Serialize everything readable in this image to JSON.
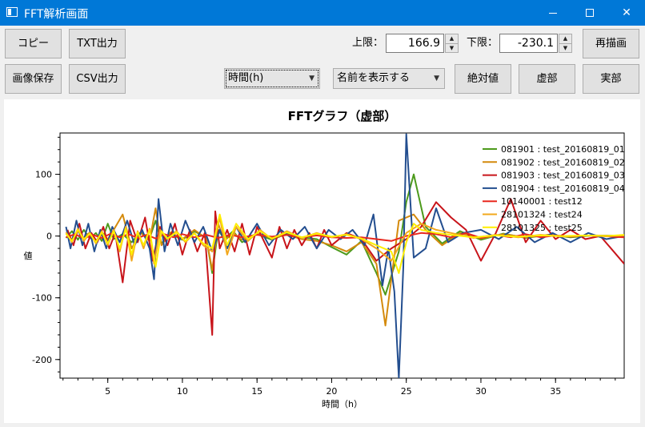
{
  "window": {
    "title": "FFT解析画面",
    "minimize_icon": "minimize-icon",
    "maximize_icon": "maximize-icon",
    "close_icon": "close-icon",
    "close_label": "✕"
  },
  "toolbar": {
    "copy": "コピー",
    "txt_out": "TXT出力",
    "save_image": "画像保存",
    "csv_out": "CSV出力",
    "upper_label": "上限：",
    "upper_value": "166.9",
    "lower_label": "下限：",
    "lower_value": "-230.1",
    "redraw": "再描画",
    "time_select": "時間(h)",
    "name_select": "名前を表示する",
    "absolute": "絶対値",
    "imaginary": "虚部",
    "real": "実部"
  },
  "chart_data": {
    "type": "line",
    "title": "FFTグラフ（虚部）",
    "xlabel": "時間（h）",
    "ylabel": "値",
    "xlim": [
      1.8,
      39.6
    ],
    "ylim": [
      -230.1,
      166.9
    ],
    "xticks": [
      5,
      10,
      15,
      20,
      25,
      30,
      35
    ],
    "yticks": [
      100,
      0,
      -100,
      -200
    ],
    "grid": false,
    "legend_position": "top-right",
    "series": [
      {
        "name": "081901 : test_20160819_01",
        "color": "#4d9a1c",
        "x": [
          2.2,
          2.6,
          3.0,
          3.4,
          3.8,
          4.2,
          4.6,
          5.0,
          5.4,
          6.0,
          6.6,
          7.2,
          7.8,
          8.2,
          8.6,
          9.2,
          10.0,
          10.8,
          11.6,
          12.0,
          12.4,
          12.8,
          13.4,
          14.0,
          15.0,
          16.0,
          17.0,
          18.0,
          19.0,
          20.0,
          21.0,
          22.0,
          23.0,
          23.6,
          24.5,
          25.0,
          25.5,
          26.3,
          27.4,
          28.6,
          30.0,
          31.5,
          33.0,
          34.5,
          36.0,
          37.5,
          39.6
        ],
        "y": [
          -3,
          8,
          -6,
          10,
          -4,
          5,
          -8,
          20,
          -5,
          3,
          -10,
          6,
          -4,
          25,
          -12,
          4,
          -6,
          8,
          -3,
          -60,
          10,
          -5,
          8,
          -10,
          3,
          -6,
          4,
          -2,
          -5,
          -18,
          -30,
          -8,
          -60,
          -95,
          -25,
          55,
          100,
          15,
          -12,
          8,
          -6,
          4,
          -3,
          2,
          -2,
          1,
          0
        ]
      },
      {
        "name": "081902 : test_20160819_02",
        "color": "#d48a0c",
        "x": [
          2.2,
          2.6,
          3.0,
          3.4,
          3.8,
          4.2,
          4.6,
          5.0,
          5.4,
          6.0,
          6.6,
          7.2,
          7.8,
          8.2,
          8.6,
          9.2,
          10.0,
          10.8,
          11.6,
          12.0,
          12.4,
          12.8,
          13.4,
          14.0,
          15.0,
          16.0,
          17.0,
          18.0,
          19.0,
          20.0,
          21.0,
          22.0,
          23.0,
          23.6,
          24.5,
          25.0,
          25.5,
          26.3,
          27.4,
          28.6,
          30.0,
          31.5,
          33.0,
          34.5,
          36.0,
          37.5,
          39.6
        ],
        "y": [
          4,
          -6,
          8,
          -3,
          6,
          -8,
          3,
          -5,
          10,
          35,
          -20,
          5,
          -8,
          45,
          -15,
          6,
          -5,
          10,
          -4,
          -55,
          20,
          -8,
          5,
          -6,
          4,
          -3,
          2,
          -5,
          -8,
          -15,
          -25,
          -10,
          -45,
          -145,
          25,
          30,
          35,
          10,
          -15,
          5,
          -4,
          3,
          -2,
          2,
          -1,
          1,
          0
        ]
      },
      {
        "name": "081903 : test_20160819_03",
        "color": "#c8141a",
        "x": [
          2.3,
          2.7,
          3.1,
          3.5,
          3.9,
          4.3,
          4.7,
          5.1,
          5.5,
          6.0,
          6.5,
          7.0,
          7.5,
          8.0,
          8.5,
          9.0,
          9.5,
          10.0,
          10.5,
          11.0,
          11.5,
          12.0,
          12.2,
          12.5,
          13.0,
          13.5,
          14.0,
          14.5,
          15.0,
          15.5,
          16.0,
          16.5,
          17.0,
          17.5,
          18.0,
          18.5,
          19.0,
          19.5,
          20.0,
          21.0,
          22.0,
          23.0,
          24.0,
          25.0,
          26.0,
          27.0,
          28.0,
          29.0,
          30.0,
          31.0,
          32.0,
          33.0,
          34.0,
          35.0,
          36.0,
          37.0,
          38.0,
          39.6
        ],
        "y": [
          10,
          -15,
          20,
          -20,
          5,
          -10,
          15,
          -20,
          5,
          -75,
          25,
          -10,
          30,
          -40,
          15,
          -15,
          20,
          -30,
          10,
          -25,
          5,
          -160,
          40,
          -20,
          10,
          -25,
          20,
          -30,
          15,
          -10,
          -35,
          15,
          -20,
          10,
          -15,
          5,
          -20,
          10,
          -15,
          5,
          -5,
          -40,
          -20,
          -5,
          15,
          55,
          30,
          10,
          -40,
          5,
          60,
          -10,
          25,
          -5,
          10,
          -5,
          0,
          -45
        ]
      },
      {
        "name": "081904 : test_20160819_04",
        "color": "#234e8f",
        "x": [
          2.2,
          2.5,
          2.9,
          3.3,
          3.7,
          4.1,
          4.5,
          4.9,
          5.3,
          5.8,
          6.3,
          6.8,
          7.3,
          7.8,
          8.1,
          8.4,
          8.8,
          9.2,
          9.7,
          10.2,
          10.8,
          11.4,
          12.0,
          12.5,
          13.0,
          13.6,
          14.2,
          15.0,
          15.8,
          16.6,
          17.4,
          18.2,
          19.0,
          19.8,
          20.6,
          21.4,
          22.2,
          22.8,
          23.4,
          23.8,
          24.2,
          24.5,
          24.8,
          25.0,
          25.5,
          26.3,
          27.0,
          27.8,
          28.8,
          30.0,
          31.2,
          32.4,
          33.6,
          34.8,
          36.0,
          37.2,
          38.4,
          39.6
        ],
        "y": [
          15,
          -20,
          25,
          -15,
          20,
          -25,
          10,
          -20,
          15,
          -10,
          25,
          -15,
          10,
          -20,
          -70,
          60,
          -25,
          20,
          -15,
          25,
          -10,
          15,
          -25,
          10,
          -20,
          15,
          -10,
          20,
          -15,
          10,
          -5,
          15,
          -20,
          10,
          -5,
          10,
          -15,
          35,
          -80,
          -20,
          -90,
          -230,
          -50,
          165,
          -35,
          -20,
          45,
          -10,
          5,
          10,
          -5,
          15,
          -10,
          5,
          -10,
          5,
          -5,
          0
        ]
      },
      {
        "name": "10140001 : test12",
        "color": "#e8281e",
        "x": [
          2.2,
          2.8,
          3.4,
          4.0,
          4.6,
          5.2,
          5.8,
          6.4,
          7.0,
          7.6,
          8.2,
          8.8,
          9.4,
          10.0,
          10.8,
          11.6,
          12.4,
          13.2,
          14.0,
          15.0,
          16.0,
          17.0,
          18.0,
          19.0,
          20.0,
          21.0,
          22.0,
          23.0,
          24.0,
          25.0,
          26.0,
          27.0,
          28.0,
          29.0,
          30.0,
          31.0,
          32.0,
          33.0,
          34.0,
          35.0,
          36.0,
          37.0,
          38.0,
          39.6
        ],
        "y": [
          -2,
          3,
          -4,
          2,
          -3,
          4,
          -2,
          3,
          -3,
          2,
          -4,
          3,
          -2,
          3,
          -2,
          2,
          -3,
          2,
          -2,
          2,
          -1,
          2,
          -2,
          1,
          -2,
          -3,
          -2,
          -5,
          -8,
          0,
          5,
          3,
          -2,
          5,
          -3,
          2,
          -2,
          3,
          -2,
          1,
          -1,
          1,
          0,
          -2
        ]
      },
      {
        "name": "28101324 : test24",
        "color": "#f2a81d",
        "x": [
          2.2,
          2.6,
          3.0,
          3.4,
          3.8,
          4.2,
          4.6,
          5.0,
          5.4,
          5.8,
          6.2,
          6.6,
          7.0,
          7.4,
          7.8,
          8.1,
          8.5,
          9.0,
          9.6,
          10.2,
          10.8,
          11.4,
          12.0,
          12.5,
          13.0,
          13.6,
          14.4,
          15.2,
          16.0,
          17.0,
          18.0,
          19.0,
          20.0,
          21.0,
          22.0,
          23.0,
          24.0,
          25.0,
          26.0,
          27.0,
          28.0,
          29.5,
          31.0,
          32.5,
          34.0,
          35.5,
          37.0,
          38.5,
          39.6
        ],
        "y": [
          6,
          -10,
          12,
          -8,
          5,
          -12,
          8,
          -15,
          10,
          -25,
          15,
          -40,
          8,
          -20,
          12,
          -45,
          10,
          -5,
          8,
          -10,
          5,
          -15,
          -25,
          30,
          -30,
          15,
          -8,
          10,
          -5,
          8,
          -3,
          5,
          -2,
          3,
          -5,
          -20,
          -40,
          5,
          20,
          10,
          5,
          -3,
          2,
          -2,
          2,
          -1,
          1,
          0,
          1
        ]
      },
      {
        "name": "28101325 : test25",
        "color": "#ffee00",
        "x": [
          2.2,
          2.6,
          3.0,
          3.4,
          3.8,
          4.2,
          4.6,
          5.0,
          5.4,
          5.8,
          6.2,
          6.6,
          7.0,
          7.4,
          7.8,
          8.2,
          8.6,
          9.0,
          9.6,
          10.2,
          10.8,
          11.4,
          12.0,
          12.5,
          13.0,
          13.6,
          14.4,
          15.2,
          16.0,
          17.0,
          18.0,
          19.0,
          20.0,
          21.0,
          22.0,
          23.0,
          24.0,
          24.5,
          25.0,
          25.5,
          26.0,
          27.0,
          28.0,
          29.5,
          31.0,
          32.5,
          34.0,
          35.5,
          37.0,
          38.5,
          39.6
        ],
        "y": [
          4,
          -8,
          10,
          -5,
          4,
          -10,
          6,
          -12,
          8,
          -20,
          12,
          -30,
          6,
          -15,
          10,
          -50,
          8,
          -4,
          6,
          -8,
          4,
          -12,
          -20,
          35,
          -15,
          20,
          -5,
          8,
          -4,
          6,
          -2,
          4,
          -1,
          2,
          -4,
          -15,
          -25,
          -60,
          -10,
          20,
          10,
          5,
          2,
          -2,
          1,
          -1,
          1,
          0,
          1,
          0,
          2
        ]
      }
    ]
  }
}
